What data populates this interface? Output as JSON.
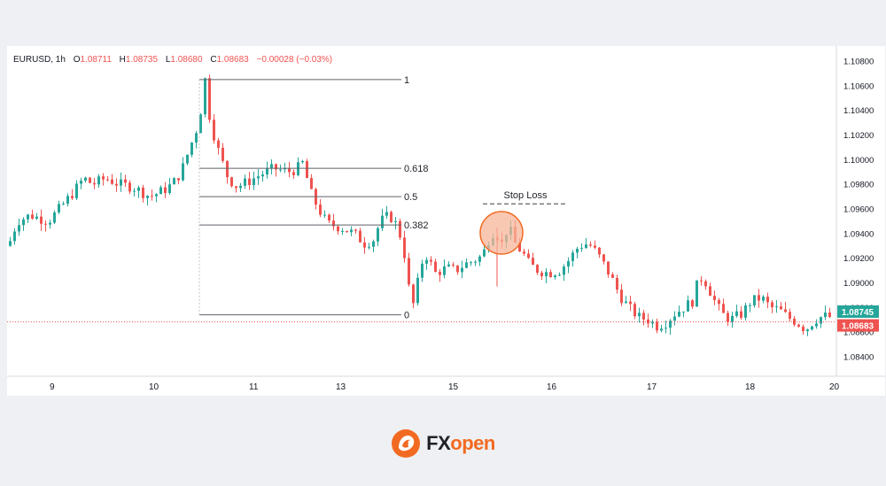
{
  "header": {
    "symbol": "EURUSD",
    "timeframe": "1h",
    "open_label": "O",
    "open": "1.08711",
    "high_label": "H",
    "high": "1.08735",
    "low_label": "L",
    "low": "1.08680",
    "close_label": "C",
    "close": "1.08683",
    "change": "−0.00028 (−0.03%)"
  },
  "price_axis": {
    "ticks": [
      "1.10800",
      "1.10600",
      "1.10400",
      "1.10200",
      "1.10000",
      "1.09800",
      "1.09600",
      "1.09400",
      "1.09200",
      "1.09000",
      "1.08800",
      "1.08600",
      "1.08400"
    ],
    "badge_upper": "1.08745",
    "badge_lower": "1.08683"
  },
  "time_axis": {
    "ticks": [
      "9",
      "10",
      "11",
      "13",
      "15",
      "16",
      "17",
      "18",
      "20"
    ]
  },
  "fibonacci": {
    "levels": [
      {
        "label": "1",
        "price": 1.1065
      },
      {
        "label": "0.618",
        "price": 1.0993
      },
      {
        "label": "0.5",
        "price": 1.097
      },
      {
        "label": "0.382",
        "price": 1.0947
      },
      {
        "label": "0",
        "price": 1.0874
      }
    ]
  },
  "stop_loss": {
    "label": "Stop Loss",
    "price": 1.0962
  },
  "colors": {
    "up": "#26a69a",
    "down": "#ef5350",
    "fib_line": "#5d6167",
    "highlight_fill": "#f7b69a",
    "highlight_stroke": "#f26a21",
    "brand_orange": "#f26a21",
    "brand_dark": "#1f2128"
  },
  "brand": {
    "part1": "FX",
    "part2": "open"
  },
  "chart_data": {
    "type": "candlestick",
    "symbol": "EURUSD",
    "interval": "1h",
    "ylim": [
      1.083,
      1.109
    ],
    "x_ticks": [
      "9",
      "10",
      "11",
      "13",
      "15",
      "16",
      "17",
      "18",
      "20"
    ],
    "path": [
      [
        0,
        1.093
      ],
      [
        10,
        1.095
      ],
      [
        25,
        1.0955
      ],
      [
        45,
        1.095
      ],
      [
        60,
        1.0962
      ],
      [
        75,
        1.0975
      ],
      [
        85,
        1.0985
      ],
      [
        95,
        1.098
      ],
      [
        110,
        1.0985
      ],
      [
        125,
        1.098
      ],
      [
        140,
        1.0978
      ],
      [
        160,
        1.097
      ],
      [
        175,
        1.0975
      ],
      [
        185,
        1.098
      ],
      [
        195,
        1.099
      ],
      [
        205,
        1.101
      ],
      [
        215,
        1.103
      ],
      [
        222,
        1.1065
      ],
      [
        228,
        1.103
      ],
      [
        238,
        1.1005
      ],
      [
        248,
        1.0985
      ],
      [
        258,
        1.0978
      ],
      [
        270,
        1.0982
      ],
      [
        285,
        1.0988
      ],
      [
        300,
        1.0993
      ],
      [
        315,
        1.099
      ],
      [
        325,
        1.0992
      ],
      [
        333,
        1.0998
      ],
      [
        340,
        1.0975
      ],
      [
        350,
        1.096
      ],
      [
        360,
        1.0948
      ],
      [
        375,
        1.0945
      ],
      [
        390,
        1.094
      ],
      [
        402,
        1.0932
      ],
      [
        412,
        1.0935
      ],
      [
        420,
        1.095
      ],
      [
        430,
        1.0955
      ],
      [
        440,
        1.0945
      ],
      [
        448,
        1.092
      ],
      [
        455,
        1.0878
      ],
      [
        460,
        1.089
      ],
      [
        465,
        1.0915
      ],
      [
        472,
        1.0922
      ],
      [
        482,
        1.0908
      ],
      [
        495,
        1.0912
      ],
      [
        505,
        1.091
      ],
      [
        515,
        1.0915
      ],
      [
        525,
        1.0918
      ],
      [
        535,
        1.0922
      ],
      [
        542,
        1.0935
      ],
      [
        548,
        1.0942
      ],
      [
        553,
        1.0938
      ],
      [
        558,
        1.093
      ],
      [
        563,
        1.0945
      ],
      [
        568,
        1.094
      ],
      [
        573,
        1.093
      ],
      [
        580,
        1.0925
      ],
      [
        588,
        1.0915
      ],
      [
        598,
        1.091
      ],
      [
        610,
        1.0908
      ],
      [
        622,
        1.091
      ],
      [
        632,
        1.0918
      ],
      [
        642,
        1.0928
      ],
      [
        650,
        1.0932
      ],
      [
        658,
        1.093
      ],
      [
        668,
        1.092
      ],
      [
        680,
        1.0905
      ],
      [
        690,
        1.089
      ],
      [
        700,
        1.088
      ],
      [
        712,
        1.0872
      ],
      [
        722,
        1.087
      ],
      [
        732,
        1.0865
      ],
      [
        742,
        1.0868
      ],
      [
        752,
        1.0875
      ],
      [
        762,
        1.088
      ],
      [
        772,
        1.0885
      ],
      [
        780,
        1.0905
      ],
      [
        788,
        1.09
      ],
      [
        795,
        1.0888
      ],
      [
        805,
        1.0875
      ],
      [
        815,
        1.087
      ],
      [
        828,
        1.0875
      ],
      [
        838,
        1.0885
      ],
      [
        850,
        1.0888
      ],
      [
        860,
        1.088
      ],
      [
        870,
        1.0878
      ],
      [
        880,
        1.0872
      ],
      [
        890,
        1.0868
      ],
      [
        900,
        1.0862
      ],
      [
        910,
        1.087
      ],
      [
        920,
        1.0873
      ],
      [
        930,
        1.0872
      ]
    ]
  }
}
